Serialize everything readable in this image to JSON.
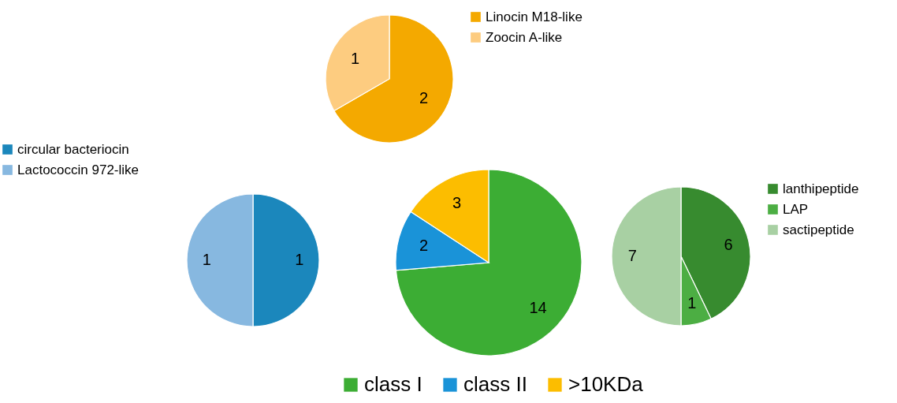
{
  "chart_data": [
    {
      "type": "pie",
      "categories": [
        "class I",
        "class II",
        ">10KDa"
      ],
      "values": [
        14,
        2,
        3
      ],
      "colors": [
        "#3cad34",
        "#1a93d8",
        "#fcbd00"
      ],
      "data_labels": true,
      "legend": "bottom"
    },
    {
      "type": "pie",
      "categories": [
        "Linocin M18-like",
        "Zoocin A-like"
      ],
      "values": [
        2,
        1
      ],
      "colors": [
        "#f4a900",
        "#fdcc80"
      ],
      "data_labels": true,
      "legend": "right"
    },
    {
      "type": "pie",
      "categories": [
        "circular bacteriocin",
        "Lactococcin 972-like"
      ],
      "values": [
        1,
        1
      ],
      "colors": [
        "#1b87bc",
        "#87b8e0"
      ],
      "data_labels": true,
      "legend": "top left"
    },
    {
      "type": "pie",
      "categories": [
        "lanthipeptide",
        "LAP",
        "sactipeptide"
      ],
      "values": [
        6,
        1,
        7
      ],
      "colors": [
        "#378b2f",
        "#4cae43",
        "#a8d0a3"
      ],
      "data_labels": true,
      "legend": "right"
    }
  ]
}
